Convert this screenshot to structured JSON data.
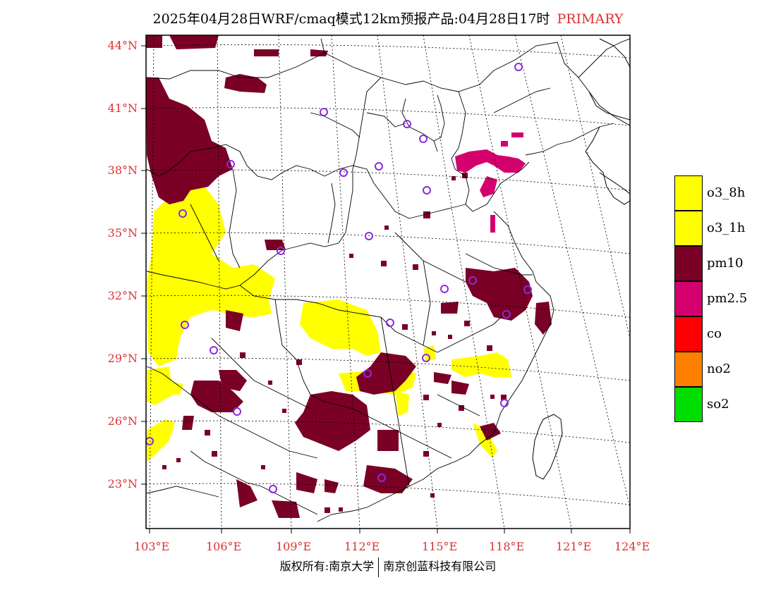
{
  "header": {
    "title": "2025年04月28日WRF/cmaq模式12km预报产品:04月28日17时",
    "tag": "PRIMARY",
    "tag_color": "#e03030"
  },
  "axes": {
    "lat_labels": [
      "44°N",
      "41°N",
      "38°N",
      "35°N",
      "32°N",
      "29°N",
      "26°N",
      "23°N"
    ],
    "lon_labels": [
      "103°E",
      "106°E",
      "109°E",
      "112°E",
      "115°E",
      "118°E",
      "121°E",
      "124°E"
    ],
    "label_color": "#e03030"
  },
  "legend": {
    "items": [
      {
        "label": "o3_8h",
        "color": "#ffff00"
      },
      {
        "label": "o3_1h",
        "color": "#ffff00"
      },
      {
        "label": "pm10",
        "color": "#7a0026"
      },
      {
        "label": "pm2.5",
        "color": "#d4006e"
      },
      {
        "label": "co",
        "color": "#ff0000"
      },
      {
        "label": "no2",
        "color": "#ff8000"
      },
      {
        "label": "so2",
        "color": "#00dd00"
      }
    ]
  },
  "footer": {
    "left": "版权所有:南京大学",
    "right": "南京创蓝科技有限公司"
  },
  "map": {
    "pollutant_colors": {
      "o3": "#ffff00",
      "pm10": "#7a0026",
      "pm25": "#d4006e"
    },
    "station_color": "#8a2be2"
  }
}
